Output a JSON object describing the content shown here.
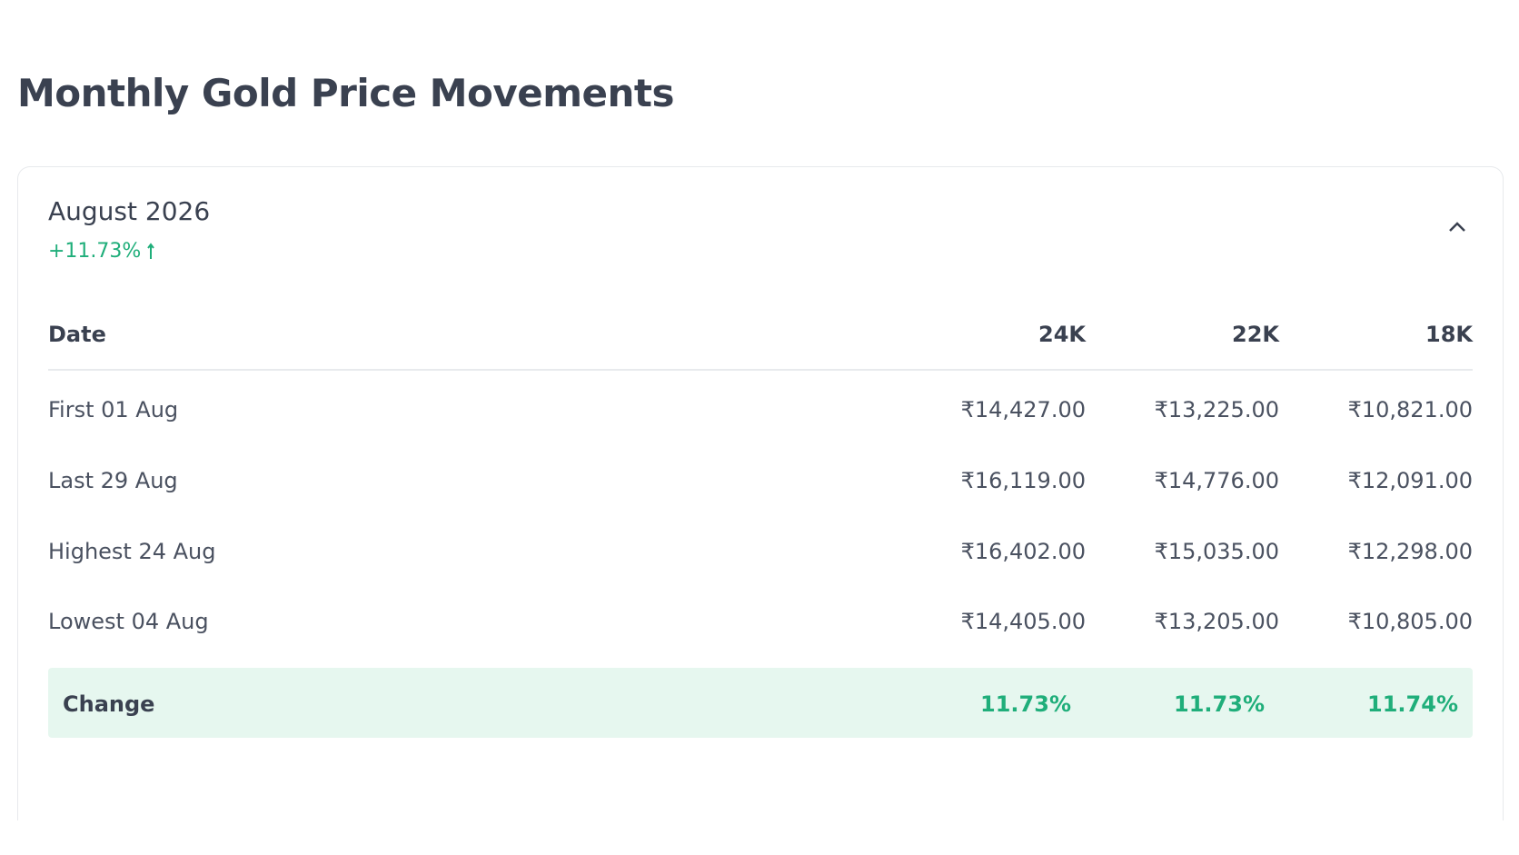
{
  "header": {
    "title": "Monthly Gold Price Movements"
  },
  "card": {
    "month": "August 2026",
    "change": "+11.73%"
  },
  "table": {
    "columns": [
      "Date",
      "24K",
      "22K",
      "18K"
    ],
    "rows": [
      [
        "First 01 Aug",
        "₹14,427.00",
        "₹13,225.00",
        "₹10,821.00"
      ],
      [
        "Last 29 Aug",
        "₹16,119.00",
        "₹14,776.00",
        "₹12,091.00"
      ],
      [
        "Highest 24 Aug",
        "₹16,402.00",
        "₹15,035.00",
        "₹12,298.00"
      ],
      [
        "Lowest 04 Aug",
        "₹14,405.00",
        "₹13,205.00",
        "₹10,805.00"
      ]
    ],
    "change_row": [
      "Change",
      "11.73%",
      "11.73%",
      "11.74%"
    ]
  }
}
